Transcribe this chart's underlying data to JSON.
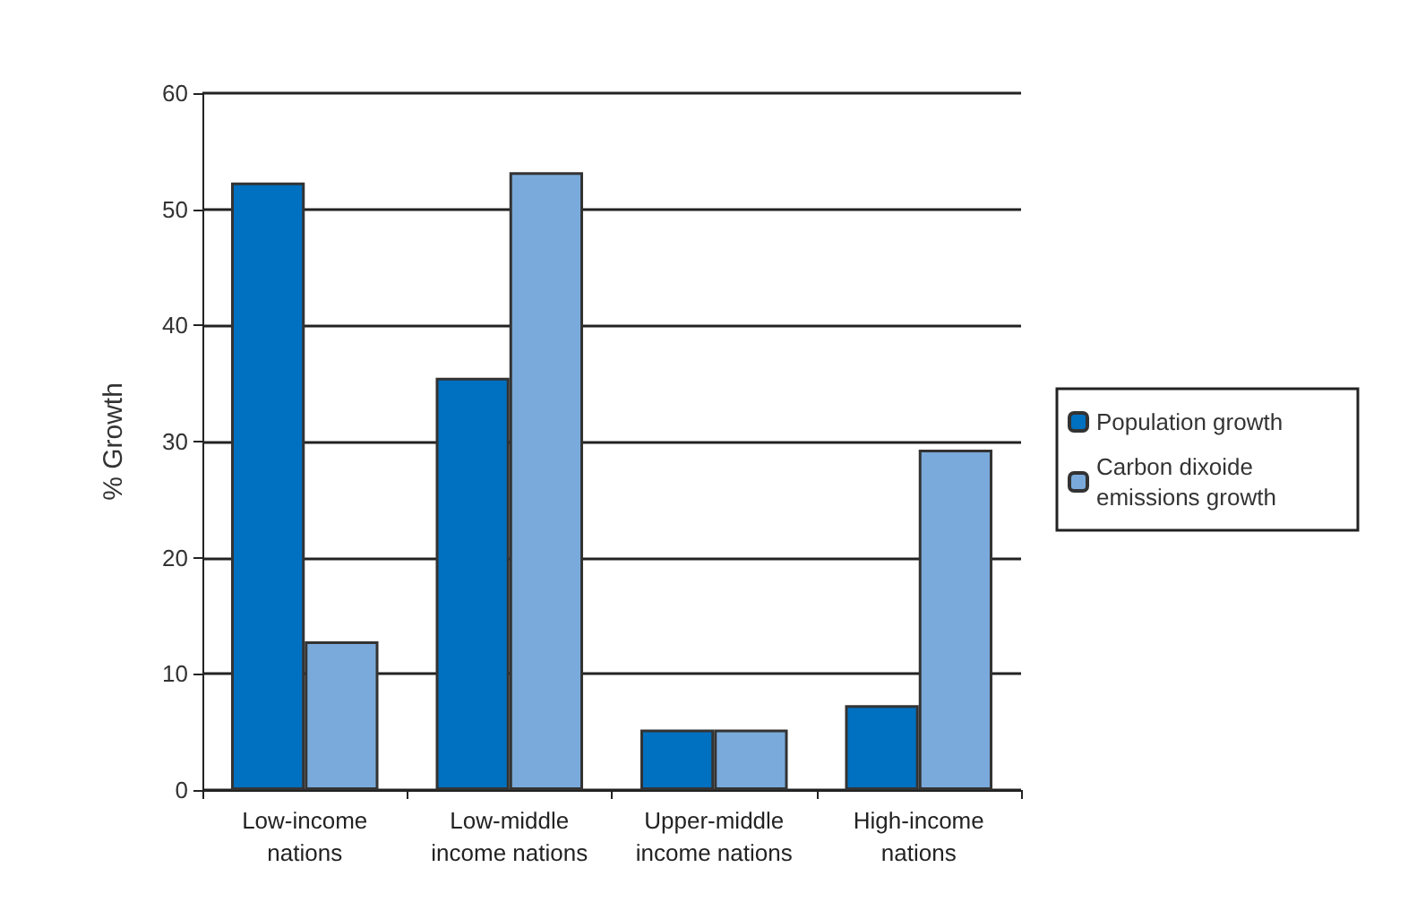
{
  "chart_data": {
    "type": "bar",
    "ylabel": "% Growth",
    "categories": [
      "Low-income\nnations",
      "Low-middle\nincome nations",
      "Upper-middle\nincome nations",
      "High-income\nnations"
    ],
    "series": [
      {
        "name": "Population growth",
        "color": "#0070c0",
        "values": [
          52.3,
          35.5,
          5.2,
          7.3
        ]
      },
      {
        "name": "Carbon dixoide emissions growth",
        "color": "#7aaadb",
        "values": [
          12.8,
          53.2,
          5.2,
          29.3
        ]
      }
    ],
    "ylim": [
      0,
      60
    ],
    "yticks": [
      0,
      10,
      20,
      30,
      40,
      50,
      60
    ],
    "grid": "y",
    "legend": "right"
  }
}
